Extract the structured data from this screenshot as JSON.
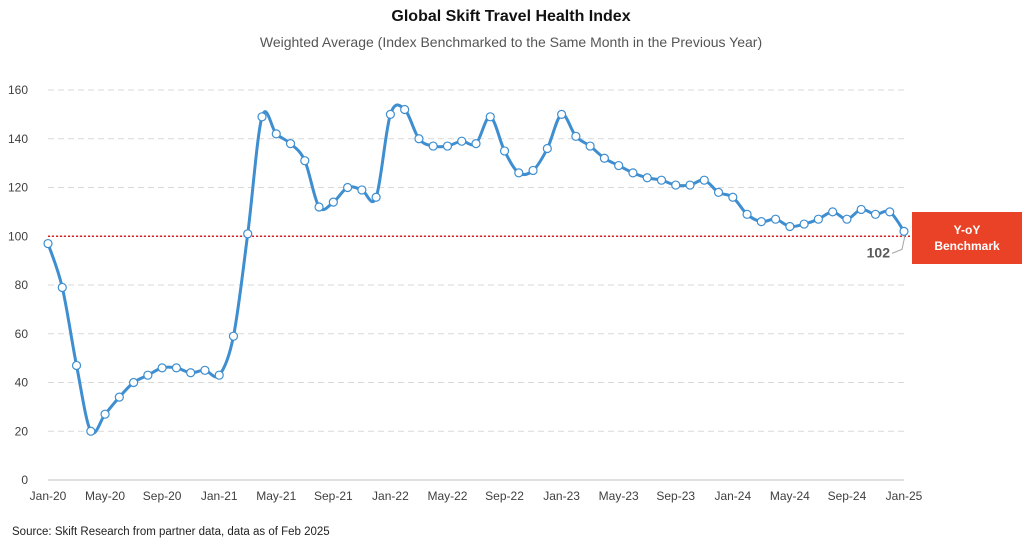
{
  "title": "Global Skift Travel Health Index",
  "subtitle": "Weighted Average (Index Benchmarked to the Same Month in the Previous Year)",
  "source": "Source: Skift Research from partner data, data as of Feb 2025",
  "benchmark_box": {
    "line1": "Y-oY",
    "line2": "Benchmark",
    "color": "#EA4226"
  },
  "last_value_label": "102",
  "colors": {
    "line": "#3E8ED0",
    "benchmark_line": "#E02020",
    "grid": "#D9D9D9"
  },
  "chart_data": {
    "type": "line",
    "title": "Global Skift Travel Health Index",
    "subtitle": "Weighted Average (Index Benchmarked to the Same Month in the Previous Year)",
    "xlabel": "",
    "ylabel": "",
    "ylim": [
      0,
      160
    ],
    "yticks": [
      0,
      20,
      40,
      60,
      80,
      100,
      120,
      140,
      160
    ],
    "xtick_labels": [
      "Jan-20",
      "May-20",
      "Sep-20",
      "Jan-21",
      "May-21",
      "Sep-21",
      "Jan-22",
      "May-22",
      "Sep-22",
      "Jan-23",
      "May-23",
      "Sep-23",
      "Jan-24",
      "May-24",
      "Sep-24",
      "Jan-25"
    ],
    "grid": true,
    "benchmark": 100,
    "x": [
      "Jan-20",
      "Feb-20",
      "Mar-20",
      "Apr-20",
      "May-20",
      "Jun-20",
      "Jul-20",
      "Aug-20",
      "Sep-20",
      "Oct-20",
      "Nov-20",
      "Dec-20",
      "Jan-21",
      "Feb-21",
      "Mar-21",
      "Apr-21",
      "May-21",
      "Jun-21",
      "Jul-21",
      "Aug-21",
      "Sep-21",
      "Oct-21",
      "Nov-21",
      "Dec-21",
      "Jan-22",
      "Feb-22",
      "Mar-22",
      "Apr-22",
      "May-22",
      "Jun-22",
      "Jul-22",
      "Aug-22",
      "Sep-22",
      "Oct-22",
      "Nov-22",
      "Dec-22",
      "Jan-23",
      "Feb-23",
      "Mar-23",
      "Apr-23",
      "May-23",
      "Jun-23",
      "Jul-23",
      "Aug-23",
      "Sep-23",
      "Oct-23",
      "Nov-23",
      "Dec-23",
      "Jan-24",
      "Feb-24",
      "Mar-24",
      "Apr-24",
      "May-24",
      "Jun-24",
      "Jul-24",
      "Aug-24",
      "Sep-24",
      "Oct-24",
      "Nov-24",
      "Dec-24",
      "Jan-25"
    ],
    "series": [
      {
        "values": [
          97,
          79,
          47,
          20,
          27,
          34,
          40,
          43,
          46,
          46,
          44,
          45,
          43,
          59,
          101,
          149,
          142,
          138,
          131,
          112,
          114,
          120,
          119,
          116,
          150,
          152,
          140,
          137,
          137,
          139,
          138,
          149,
          135,
          126,
          127,
          136,
          150,
          141,
          137,
          132,
          129,
          126,
          124,
          123,
          121,
          121,
          123,
          118,
          116,
          109,
          106,
          107,
          104,
          105,
          107,
          110,
          107,
          111,
          109,
          110,
          102
        ]
      }
    ]
  }
}
